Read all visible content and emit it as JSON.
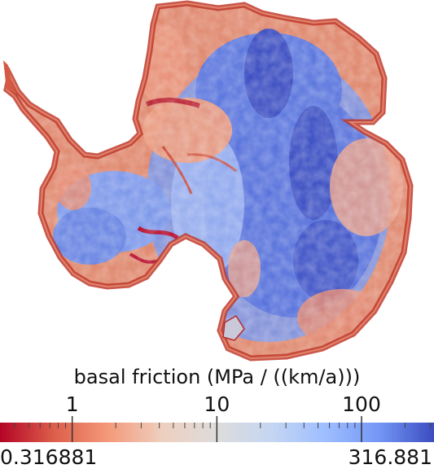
{
  "legend": {
    "title": "basal friction (MPa / ((km/a)))",
    "min_label": "0.316881",
    "max_label": "316.881",
    "min_value": 0.316881,
    "max_value": 316.881,
    "scale": "log",
    "major_ticks": [
      {
        "value": 1,
        "label": "1"
      },
      {
        "value": 10,
        "label": "10"
      },
      {
        "value": 100,
        "label": "100"
      }
    ],
    "minor_tick_values": [
      0.4,
      0.5,
      0.6,
      0.7,
      0.8,
      0.9,
      2,
      3,
      4,
      5,
      6,
      7,
      8,
      9,
      20,
      30,
      40,
      50,
      60,
      70,
      80,
      90,
      200,
      300
    ],
    "colormap": [
      "#b40426",
      "#dd5f4b",
      "#f49a7b",
      "#eecfbf",
      "#dddcdc",
      "#c5d6f2",
      "#9ebeff",
      "#7396f5",
      "#3b4cc0"
    ],
    "colormap_name": "coolwarm reversed (red low, blue high)"
  },
  "colors": {
    "high": "#3b4cc0",
    "mid": "#dddcdc",
    "low": "#b40426"
  }
}
